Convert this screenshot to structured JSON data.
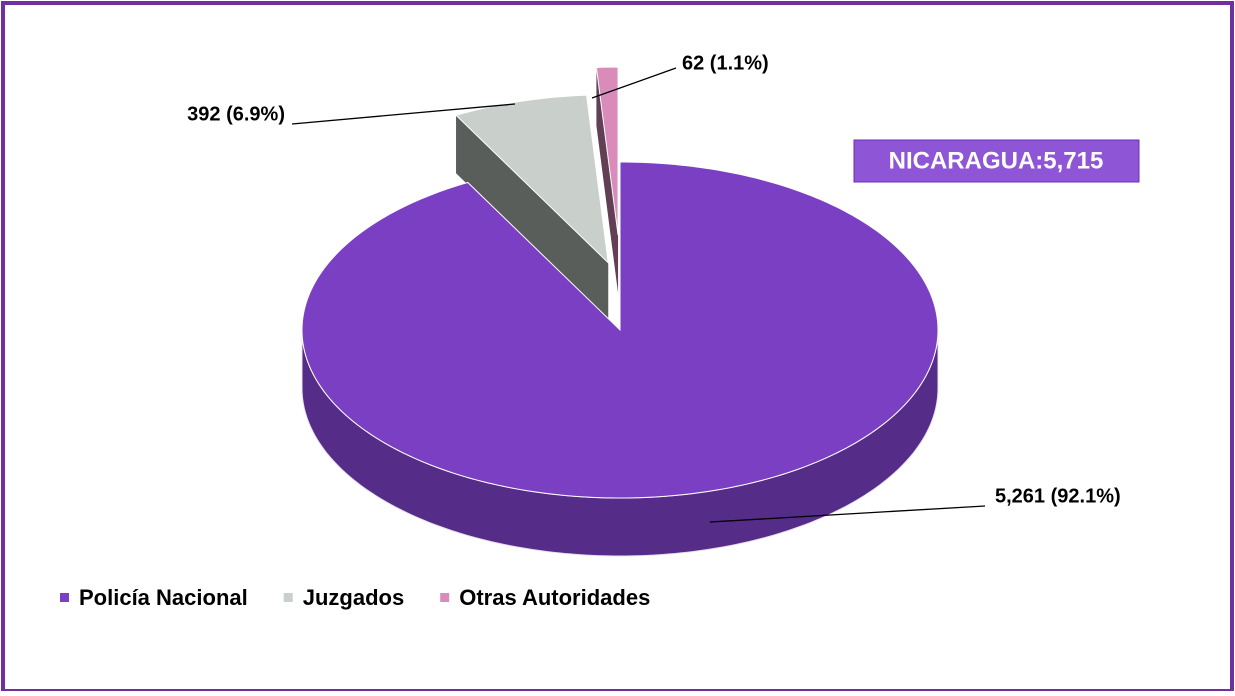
{
  "chart_data": {
    "type": "pie",
    "annotation": "NICARAGUA:5,715",
    "categories": [
      "Policía Nacional",
      "Juzgados",
      "Otras Autoridades"
    ],
    "values": [
      5261,
      392,
      62
    ],
    "value_labels": [
      "5,261 (92.1%)",
      "392 (6.9%)",
      "62 (1.1%)"
    ],
    "colors": [
      "#7b3fc4",
      "#c9d0cb",
      "#d98cba"
    ],
    "legend": "bottom-left"
  }
}
